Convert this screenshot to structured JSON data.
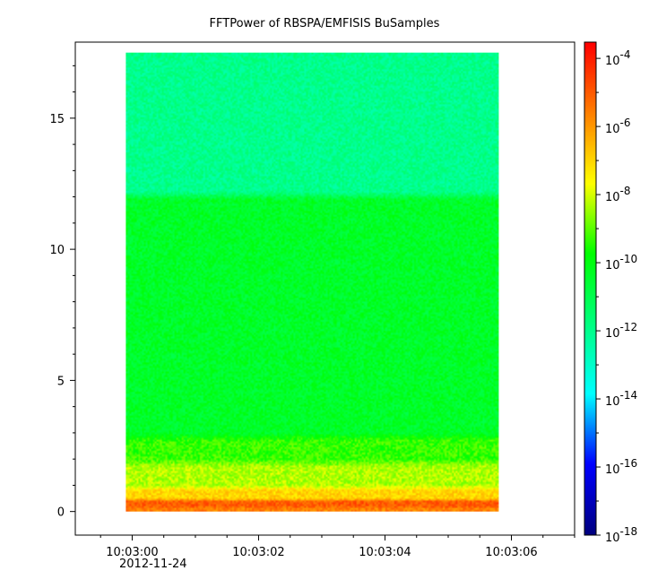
{
  "chart_data": {
    "type": "heatmap",
    "title": "FFTPower of RBSPA/EMFISIS  BuSamples",
    "x_axis": {
      "range": [
        "10:02:59.1",
        "10:03:07.0"
      ],
      "ticks": [
        "10:03:00",
        "10:03:02",
        "10:03:04",
        "10:03:06"
      ],
      "date_label": "2012-11-24"
    },
    "y_axis": {
      "range": [
        -0.9,
        17.9
      ],
      "ticks": [
        "0",
        "5",
        "10",
        "15"
      ]
    },
    "colorbar": {
      "scale": "log",
      "range": [
        1e-18,
        0.0003
      ],
      "tick_bases": [
        "10",
        "10",
        "10",
        "10",
        "10",
        "10",
        "10",
        "10"
      ],
      "tick_exponents": [
        "-4",
        "-6",
        "-8",
        "-10",
        "-12",
        "-14",
        "-16",
        "-18"
      ],
      "colormap": [
        "#000080",
        "#0000ff",
        "#00ffff",
        "#00ff80",
        "#00ff00",
        "#ffff00",
        "#ff8000",
        "#ff0000"
      ]
    },
    "data_extent": {
      "time_start": "10:02:59.9",
      "time_end": "10:03:05.8",
      "freq_start": 0.0,
      "freq_end": 17.5
    },
    "spectral_bands": [
      {
        "freq_range": [
          0.0,
          0.2
        ],
        "log10_power": -5.6
      },
      {
        "freq_range": [
          0.2,
          0.5
        ],
        "log10_power": -5.0
      },
      {
        "freq_range": [
          0.5,
          1.0
        ],
        "log10_power": -7.0
      },
      {
        "freq_range": [
          1.0,
          2.0
        ],
        "log10_power": -8.3
      },
      {
        "freq_range": [
          2.0,
          3.0
        ],
        "log10_power": -9.3
      },
      {
        "freq_range": [
          3.0,
          12.2
        ],
        "log10_power": -10.4
      },
      {
        "freq_range": [
          12.2,
          17.5
        ],
        "log10_power": -12.0
      }
    ]
  }
}
